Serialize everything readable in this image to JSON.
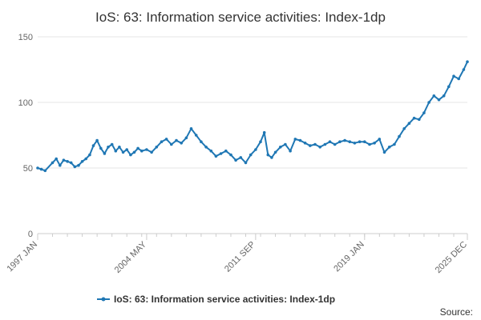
{
  "chart_data": {
    "type": "line",
    "title": "IoS: 63: Information service activities: Index-1dp",
    "xlabel": "",
    "ylabel": "",
    "x_ticks": [
      "1997 JAN",
      "2004 MAY",
      "2011 SEP",
      "2019 JAN",
      "2025 DEC"
    ],
    "x_range": [
      "1997 JAN",
      "2025 DEC"
    ],
    "ylim": [
      0,
      150
    ],
    "y_ticks": [
      0,
      50,
      100,
      150
    ],
    "grid": "horizontal",
    "legend_position": "bottom",
    "colors": {
      "series": "#1f77b4"
    },
    "series": [
      {
        "name": "IoS: 63: Information service activities: Index-1dp",
        "points": [
          [
            "1997-01",
            50
          ],
          [
            "1997-04",
            49
          ],
          [
            "1997-07",
            48
          ],
          [
            "1998-01",
            54
          ],
          [
            "1998-04",
            57
          ],
          [
            "1998-07",
            52
          ],
          [
            "1998-10",
            56
          ],
          [
            "1999-01",
            55
          ],
          [
            "1999-04",
            54
          ],
          [
            "1999-07",
            51
          ],
          [
            "1999-10",
            52
          ],
          [
            "2000-01",
            55
          ],
          [
            "2000-04",
            57
          ],
          [
            "2000-07",
            60
          ],
          [
            "2000-10",
            67
          ],
          [
            "2001-01",
            71
          ],
          [
            "2001-04",
            65
          ],
          [
            "2001-07",
            61
          ],
          [
            "2001-10",
            66
          ],
          [
            "2002-01",
            68
          ],
          [
            "2002-04",
            63
          ],
          [
            "2002-07",
            66
          ],
          [
            "2002-10",
            62
          ],
          [
            "2003-01",
            64
          ],
          [
            "2003-04",
            60
          ],
          [
            "2003-07",
            62
          ],
          [
            "2003-10",
            65
          ],
          [
            "2004-01",
            63
          ],
          [
            "2004-05",
            64
          ],
          [
            "2004-09",
            62
          ],
          [
            "2005-01",
            66
          ],
          [
            "2005-05",
            70
          ],
          [
            "2005-09",
            72
          ],
          [
            "2006-01",
            68
          ],
          [
            "2006-05",
            71
          ],
          [
            "2006-09",
            69
          ],
          [
            "2007-01",
            73
          ],
          [
            "2007-05",
            80
          ],
          [
            "2007-09",
            75
          ],
          [
            "2008-01",
            70
          ],
          [
            "2008-05",
            66
          ],
          [
            "2008-09",
            63
          ],
          [
            "2009-01",
            59
          ],
          [
            "2009-05",
            61
          ],
          [
            "2009-09",
            63
          ],
          [
            "2010-01",
            60
          ],
          [
            "2010-05",
            56
          ],
          [
            "2010-09",
            58
          ],
          [
            "2011-01",
            54
          ],
          [
            "2011-05",
            60
          ],
          [
            "2011-09",
            64
          ],
          [
            "2012-01",
            70
          ],
          [
            "2012-04",
            77
          ],
          [
            "2012-07",
            60
          ],
          [
            "2012-10",
            58
          ],
          [
            "2013-01",
            62
          ],
          [
            "2013-05",
            66
          ],
          [
            "2013-09",
            68
          ],
          [
            "2014-01",
            63
          ],
          [
            "2014-05",
            72
          ],
          [
            "2014-09",
            71
          ],
          [
            "2015-01",
            69
          ],
          [
            "2015-05",
            67
          ],
          [
            "2015-09",
            68
          ],
          [
            "2016-01",
            66
          ],
          [
            "2016-05",
            68
          ],
          [
            "2016-09",
            70
          ],
          [
            "2017-01",
            68
          ],
          [
            "2017-05",
            70
          ],
          [
            "2017-09",
            71
          ],
          [
            "2018-01",
            70
          ],
          [
            "2018-05",
            69
          ],
          [
            "2018-09",
            70
          ],
          [
            "2019-01",
            70
          ],
          [
            "2019-05",
            68
          ],
          [
            "2019-09",
            69
          ],
          [
            "2020-01",
            72
          ],
          [
            "2020-05",
            62
          ],
          [
            "2020-09",
            66
          ],
          [
            "2021-01",
            68
          ],
          [
            "2021-05",
            74
          ],
          [
            "2021-09",
            80
          ],
          [
            "2022-01",
            84
          ],
          [
            "2022-05",
            88
          ],
          [
            "2022-09",
            87
          ],
          [
            "2023-01",
            92
          ],
          [
            "2023-05",
            100
          ],
          [
            "2023-09",
            105
          ],
          [
            "2024-01",
            102
          ],
          [
            "2024-05",
            105
          ],
          [
            "2024-09",
            112
          ],
          [
            "2025-01",
            120
          ],
          [
            "2025-05",
            118
          ],
          [
            "2025-09",
            125
          ],
          [
            "2025-12",
            131
          ]
        ]
      }
    ],
    "source_label": "Source:"
  }
}
